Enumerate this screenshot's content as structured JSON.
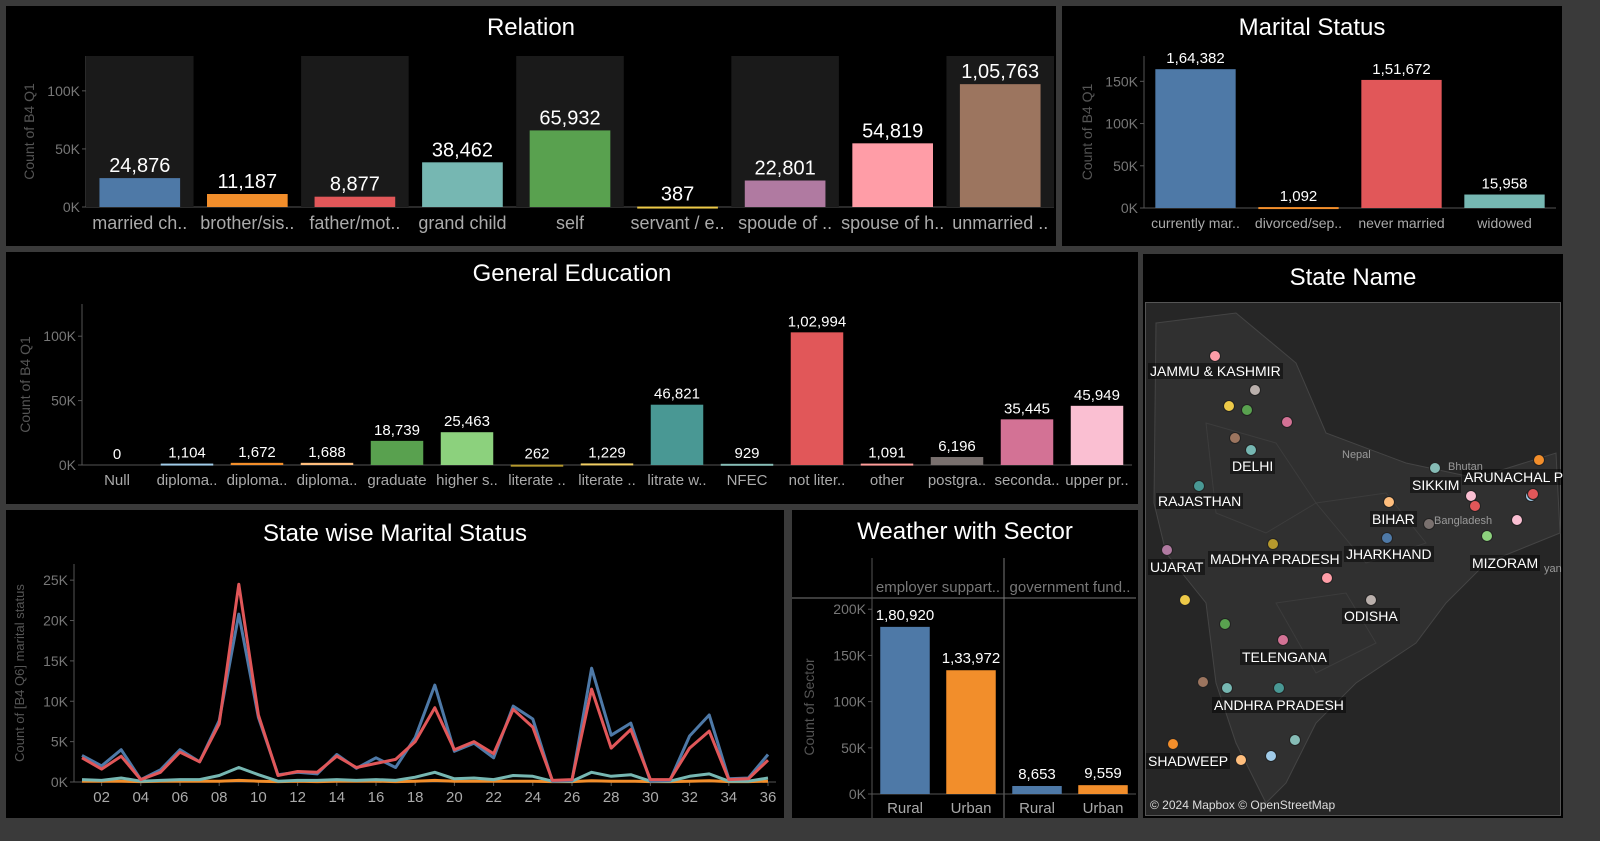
{
  "chart_data": [
    {
      "id": "relation",
      "type": "bar",
      "title": "Relation",
      "ylabel": "Count of B4 Q1",
      "ylim": [
        0,
        130000
      ],
      "yticks": [
        0,
        50000,
        100000
      ],
      "ytick_labels": [
        "0K",
        "50K",
        "100K"
      ],
      "categories": [
        "married ch..",
        "brother/sis..",
        "father/mot..",
        "grand child",
        "self",
        "servant / e..",
        "spoude of ..",
        "spouse of h..",
        "unmarried .."
      ],
      "values": [
        24876,
        11187,
        8877,
        38462,
        65932,
        387,
        22801,
        54819,
        105763
      ],
      "labels": [
        "24,876",
        "11,187",
        "8,877",
        "38,462",
        "65,932",
        "387",
        "22,801",
        "54,819",
        "1,05,763"
      ],
      "colors": [
        "#4e79a7",
        "#f28e2b",
        "#e15759",
        "#76b7b2",
        "#59a14f",
        "#edc948",
        "#b07aa1",
        "#ff9da7",
        "#9c755f"
      ]
    },
    {
      "id": "marital",
      "type": "bar",
      "title": "Marital Status",
      "ylabel": "Count of B4 Q1",
      "ylim": [
        0,
        180000
      ],
      "yticks": [
        0,
        50000,
        100000,
        150000
      ],
      "ytick_labels": [
        "0K",
        "50K",
        "100K",
        "150K"
      ],
      "categories": [
        "currently mar..",
        "divorced/sep..",
        "never married",
        "widowed"
      ],
      "values": [
        164382,
        1092,
        151672,
        15958
      ],
      "labels": [
        "1,64,382",
        "1,092",
        "1,51,672",
        "15,958"
      ],
      "colors": [
        "#4e79a7",
        "#f28e2b",
        "#e15759",
        "#76b7b2"
      ]
    },
    {
      "id": "education",
      "type": "bar",
      "title": "General Education",
      "ylabel": "Count of B4 Q1",
      "ylim": [
        0,
        125000
      ],
      "yticks": [
        0,
        50000,
        100000
      ],
      "ytick_labels": [
        "0K",
        "50K",
        "100K"
      ],
      "categories": [
        "Null",
        "diploma..",
        "diploma..",
        "diploma..",
        "graduate",
        "higher s..",
        "literate ..",
        "literate ..",
        "litrate w..",
        "NFEC",
        "not liter..",
        "other",
        "postgra..",
        "seconda..",
        "upper pr.."
      ],
      "values": [
        0,
        1104,
        1672,
        1688,
        18739,
        25463,
        262,
        1229,
        46821,
        929,
        102994,
        1091,
        6196,
        35445,
        45949
      ],
      "labels": [
        "0",
        "1,104",
        "1,672",
        "1,688",
        "18,739",
        "25,463",
        "262",
        "1,229",
        "46,821",
        "929",
        "1,02,994",
        "1,091",
        "6,196",
        "35,445",
        "45,949"
      ],
      "colors": [
        "#4e79a7",
        "#a0cbe8",
        "#f28e2b",
        "#ffbe7d",
        "#59a14f",
        "#8cd17d",
        "#b6992d",
        "#f1ce63",
        "#499894",
        "#86bcb6",
        "#e15759",
        "#ff9d9a",
        "#79706e",
        "#d37295",
        "#fabfd2"
      ]
    },
    {
      "id": "state_marital",
      "type": "line",
      "title": "State wise Marital Status",
      "ylabel": "Count of [B4 Q6] marital status",
      "ylim": [
        0,
        27000
      ],
      "yticks": [
        0,
        5000,
        10000,
        15000,
        20000,
        25000
      ],
      "ytick_labels": [
        "0K",
        "5K",
        "10K",
        "15K",
        "20K",
        "25K"
      ],
      "x": [
        1,
        2,
        3,
        4,
        5,
        6,
        7,
        8,
        9,
        10,
        11,
        12,
        13,
        14,
        15,
        16,
        17,
        18,
        19,
        20,
        21,
        22,
        23,
        24,
        25,
        26,
        27,
        28,
        29,
        30,
        31,
        32,
        33,
        34,
        35,
        36
      ],
      "xtick_labels": [
        "02",
        "04",
        "06",
        "08",
        "10",
        "12",
        "14",
        "16",
        "18",
        "20",
        "22",
        "24",
        "26",
        "28",
        "30",
        "32",
        "34",
        "36"
      ],
      "series": [
        {
          "values": [
            3000,
            1600,
            3200,
            300,
            1200,
            3700,
            2500,
            7200,
            24500,
            8300,
            800,
            1300,
            1200,
            3200,
            1800,
            2300,
            2800,
            5000,
            9200,
            4000,
            5000,
            3500,
            9000,
            6800,
            200,
            300,
            11500,
            4200,
            6500,
            300,
            300,
            4200,
            6300,
            300,
            400,
            2700
          ],
          "color": "#e15759"
        },
        {
          "values": [
            3300,
            2000,
            4000,
            300,
            1500,
            4000,
            2500,
            7600,
            20800,
            8000,
            900,
            1200,
            1000,
            3400,
            1700,
            3000,
            1800,
            5500,
            12000,
            3800,
            4800,
            3000,
            9400,
            7800,
            100,
            200,
            14100,
            5800,
            7300,
            100,
            200,
            5700,
            8300,
            400,
            500,
            3400
          ],
          "color": "#4e79a7"
        },
        {
          "values": [
            300,
            200,
            500,
            100,
            200,
            300,
            300,
            800,
            1800,
            900,
            100,
            200,
            200,
            300,
            200,
            300,
            200,
            600,
            1200,
            400,
            500,
            300,
            800,
            700,
            100,
            100,
            1200,
            700,
            900,
            100,
            100,
            700,
            1000,
            100,
            100,
            500
          ],
          "color": "#76b7b2"
        },
        {
          "values": [
            100,
            100,
            100,
            50,
            100,
            100,
            100,
            100,
            200,
            100,
            50,
            100,
            50,
            100,
            100,
            100,
            50,
            100,
            200,
            100,
            100,
            100,
            100,
            100,
            50,
            50,
            150,
            100,
            100,
            50,
            50,
            100,
            150,
            50,
            50,
            100
          ],
          "color": "#f28e2b"
        }
      ]
    },
    {
      "id": "weather_sector",
      "type": "bar",
      "title": "Weather with Sector",
      "ylabel": "Count of Sector",
      "ylim": [
        0,
        210000
      ],
      "yticks": [
        0,
        50000,
        100000,
        150000,
        200000
      ],
      "ytick_labels": [
        "0K",
        "50K",
        "100K",
        "150K",
        "200K"
      ],
      "groups": [
        "employer suppart..",
        "government fund.."
      ],
      "categories": [
        "Rural",
        "Urban",
        "Rural",
        "Urban"
      ],
      "values": [
        180920,
        133972,
        8653,
        9559
      ],
      "labels": [
        "1,80,920",
        "1,33,972",
        "8,653",
        "9,559"
      ],
      "colors": [
        "#4e79a7",
        "#f28e2b",
        "#4e79a7",
        "#f28e2b"
      ]
    }
  ],
  "map": {
    "title": "State Name",
    "credit": "© 2024 Mapbox © OpenStreetMap",
    "labels": [
      "JAMMU & KASHMIR",
      "DELHI",
      "RAJASTHAN",
      "UJARAT",
      "MADHYA PRADESH",
      "BIHAR",
      "JHARKHAND",
      "SIKKIM",
      "ARUNACHAL PI",
      "MIZORAM",
      "ODISHA",
      "TELENGANA",
      "ANDHRA PRADESH",
      "SHADWEEP"
    ],
    "small_labels": [
      "Nepal",
      "Bhutan",
      "Bangladesh",
      "yan"
    ],
    "point_colors": [
      "#ff9da7",
      "#bab0ac",
      "#edc948",
      "#59a14f",
      "#d37295",
      "#9c755f",
      "#76b7b2",
      "#499894",
      "#86bcb6",
      "#f28e2b",
      "#ffbe7d",
      "#a0cbe8",
      "#fabfd2",
      "#e15759",
      "#4e79a7",
      "#b07aa1",
      "#b6992d",
      "#79706e",
      "#8cd17d"
    ]
  }
}
